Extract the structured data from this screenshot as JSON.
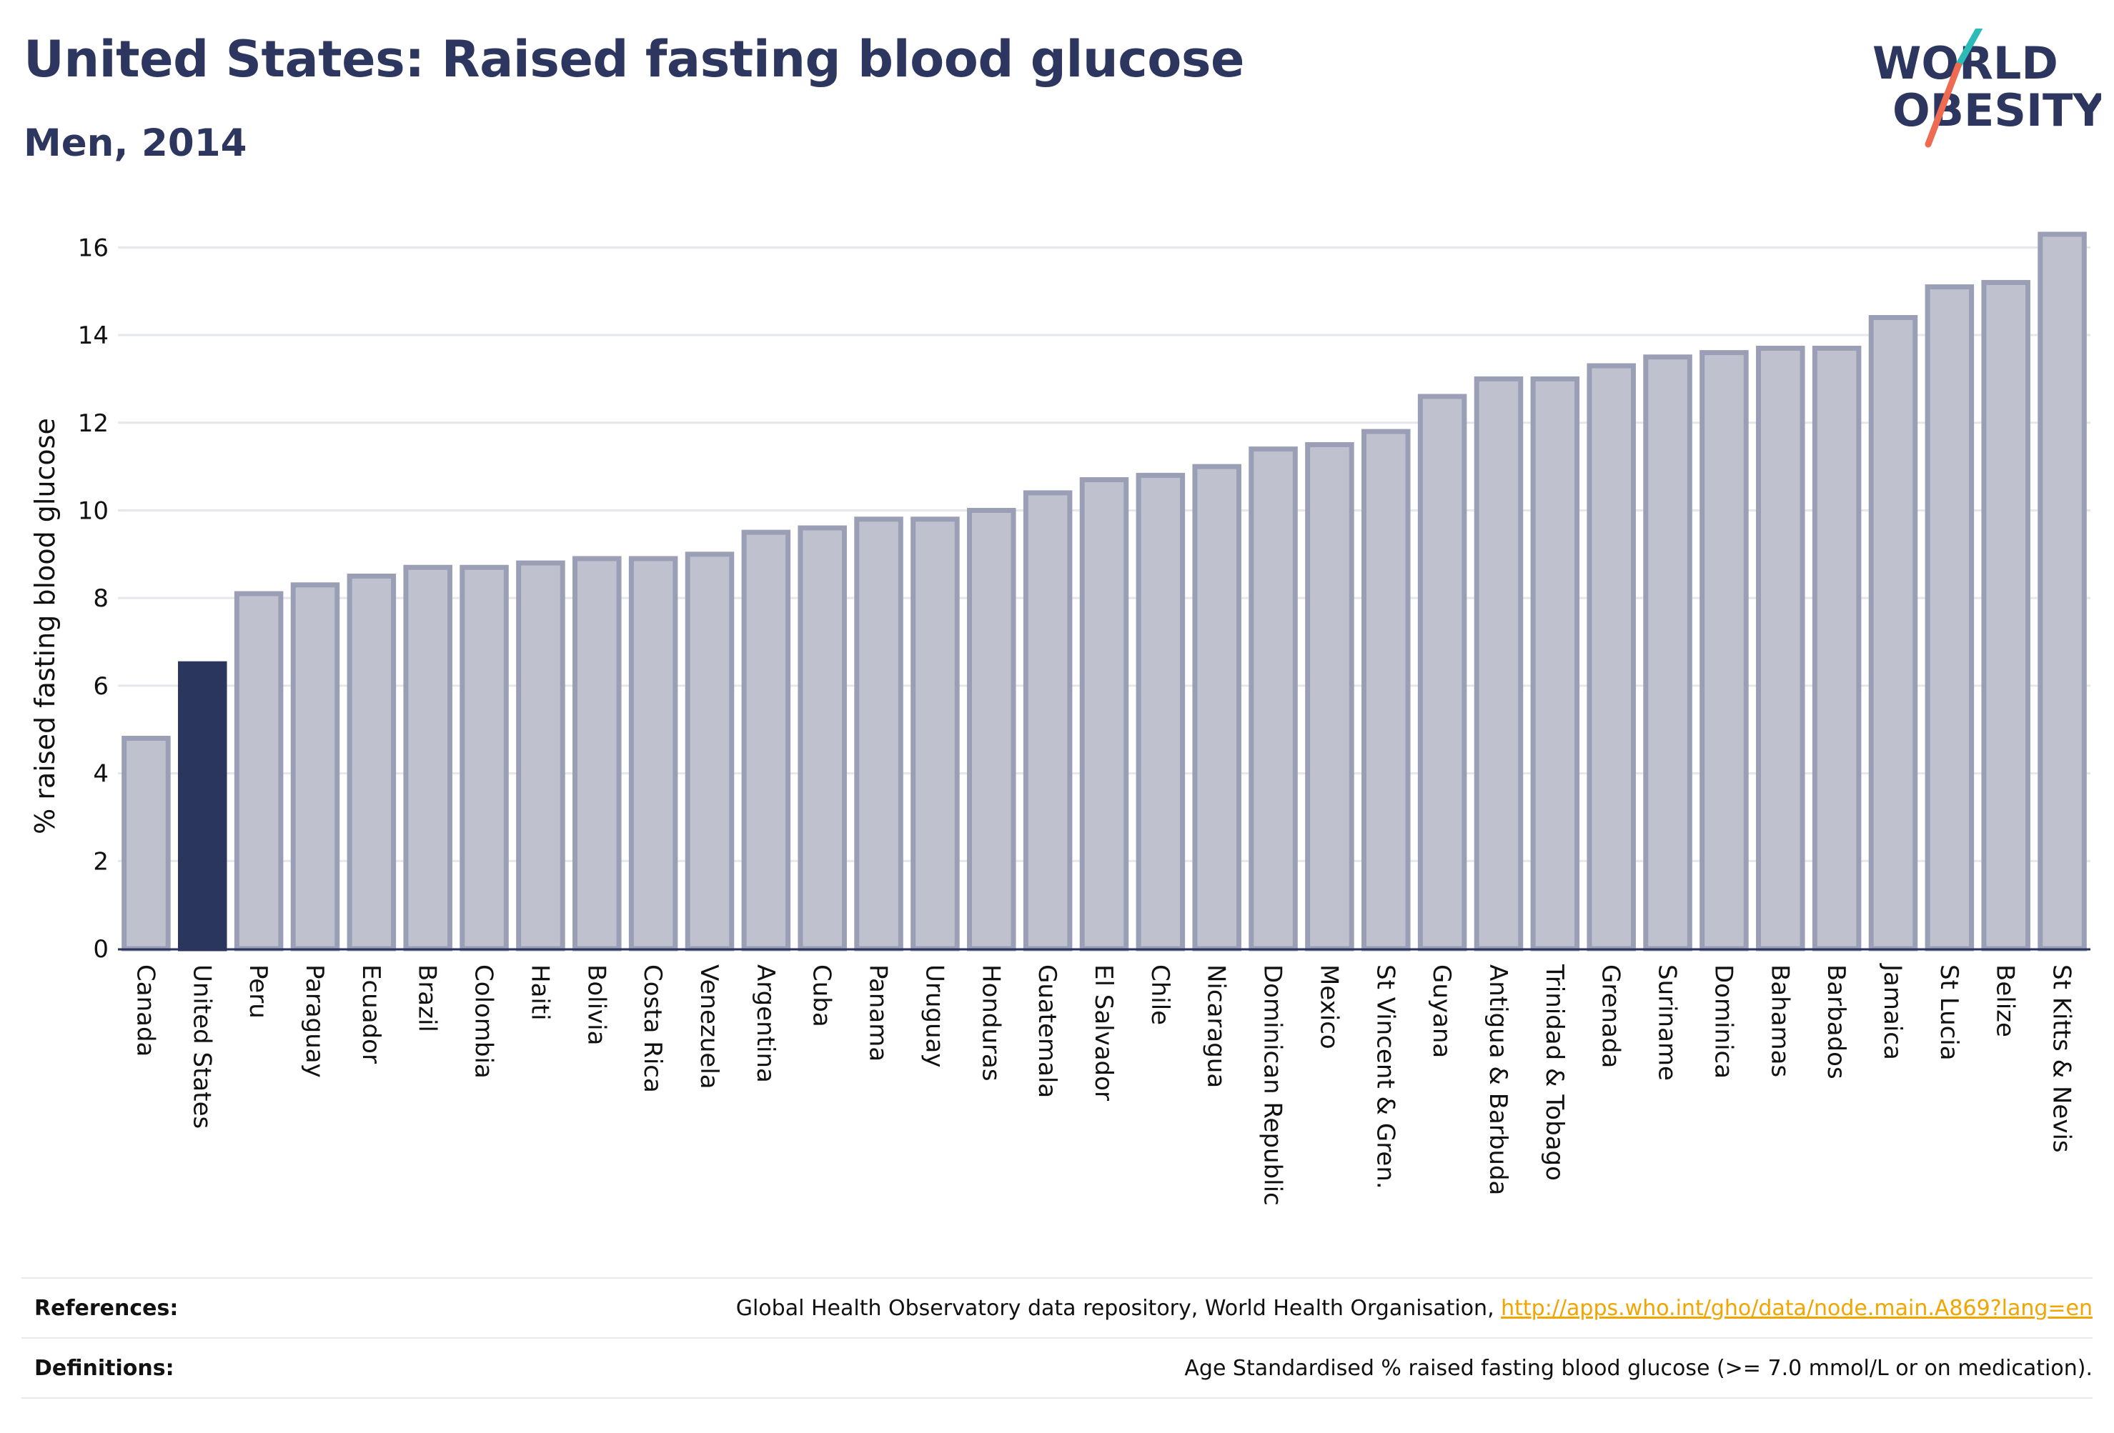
{
  "header": {
    "title": "United States: Raised fasting blood glucose",
    "subtitle": "Men, 2014"
  },
  "logo": {
    "line1": "WORLD",
    "line2": "OBESITY",
    "accent_teal": "#2bbcb8",
    "accent_coral": "#ee6a50"
  },
  "colors": {
    "bar": "#bfc2ce",
    "bar_edge": "#9a9fb5",
    "highlight": "#2b365f",
    "text": "#2c365e",
    "grid": "#e6e7ee"
  },
  "chart_data": {
    "type": "bar",
    "ylabel": "% raised fasting blood glucose",
    "ylim": [
      0,
      17
    ],
    "yticks": [
      0,
      2,
      4,
      6,
      8,
      10,
      12,
      14,
      16
    ],
    "highlight": "United States",
    "categories": [
      "Canada",
      "United States",
      "Peru",
      "Paraguay",
      "Ecuador",
      "Brazil",
      "Colombia",
      "Haiti",
      "Bolivia",
      "Costa Rica",
      "Venezuela",
      "Argentina",
      "Cuba",
      "Panama",
      "Uruguay",
      "Honduras",
      "Guatemala",
      "El Salvador",
      "Chile",
      "Nicaragua",
      "Dominican Republic",
      "Mexico",
      "St Vincent & Gren.",
      "Guyana",
      "Antigua & Barbuda",
      "Trinidad & Tobago",
      "Grenada",
      "Suriname",
      "Dominica",
      "Bahamas",
      "Barbados",
      "Jamaica",
      "St Lucia",
      "Belize",
      "St Kitts & Nevis"
    ],
    "values": [
      4.8,
      6.5,
      8.1,
      8.3,
      8.5,
      8.7,
      8.7,
      8.8,
      8.9,
      8.9,
      9.0,
      9.5,
      9.6,
      9.8,
      9.8,
      10.0,
      10.4,
      10.7,
      10.8,
      11.0,
      11.4,
      11.5,
      11.8,
      12.6,
      13.0,
      13.0,
      13.3,
      13.5,
      13.6,
      13.7,
      13.7,
      14.4,
      15.1,
      15.2,
      16.3
    ]
  },
  "footer": {
    "references_label": "References:",
    "references_text": "Global Health Observatory data repository, World Health Organisation, ",
    "references_link": "http://apps.who.int/gho/data/node.main.A869?lang=en",
    "definitions_label": "Definitions:",
    "definitions_text": "Age Standardised % raised fasting blood glucose (>= 7.0 mmol/L or on medication)."
  }
}
